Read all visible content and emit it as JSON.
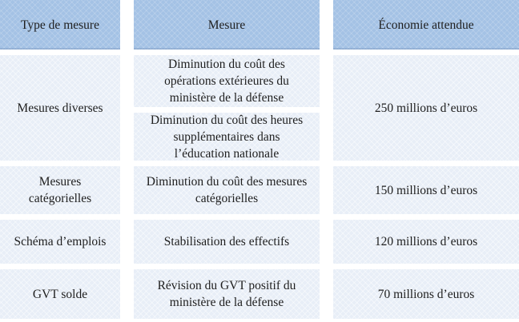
{
  "table": {
    "headers": {
      "type": "Type de mesure",
      "mesure": "Mesure",
      "economie": "Économie attendue"
    },
    "rows": [
      {
        "type": "Mesures diverses",
        "mesures": [
          "Diminution du coût des opérations extérieures du ministère de la défense",
          "Diminution du coût des heures supplémentaires dans l’éducation nationale"
        ],
        "economie": "250 millions d’euros"
      },
      {
        "type": "Mesures catégorielles",
        "mesures": [
          "Diminution du coût des mesures catégorielles"
        ],
        "economie": "150 millions d’euros"
      },
      {
        "type": "Schéma d’emplois",
        "mesures": [
          "Stabilisation des effectifs"
        ],
        "economie": "120 millions d’euros"
      },
      {
        "type": "GVT solde",
        "mesures": [
          "Révision du GVT positif du ministère de la défense"
        ],
        "economie": "70 millions d’euros"
      }
    ],
    "colors": {
      "header_bg": "#a4c2e5",
      "cell_bg": "#e8eef7",
      "text": "#1e1e1e",
      "gutter": "#ffffff"
    }
  }
}
